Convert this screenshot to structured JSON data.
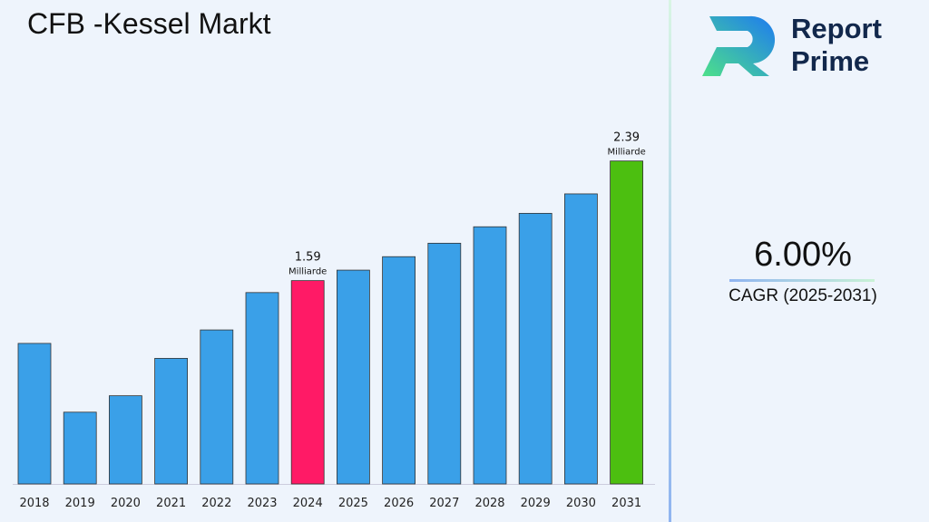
{
  "title": "CFB -Kessel Markt",
  "logo": {
    "line1": "Report",
    "line2": "Prime"
  },
  "cagr": {
    "value": "6.00%",
    "label": "CAGR (2025-2031)"
  },
  "colors": {
    "default": "#3aa0e8",
    "highlight_2024": "#ff1a66",
    "highlight_2031": "#4cbf10"
  },
  "chart_data": {
    "type": "bar",
    "title": "CFB -Kessel Markt",
    "categories": [
      "2018",
      "2019",
      "2020",
      "2021",
      "2022",
      "2023",
      "2024",
      "2025",
      "2026",
      "2027",
      "2028",
      "2029",
      "2030",
      "2031"
    ],
    "values": [
      1.17,
      0.71,
      0.82,
      1.07,
      1.26,
      1.51,
      1.59,
      1.66,
      1.75,
      1.84,
      1.95,
      2.04,
      2.17,
      2.39
    ],
    "ylim": [
      0.23,
      2.6
    ],
    "grid": false,
    "annotations": [
      {
        "category": "2024",
        "value": "1.59",
        "unit": "Milliarde"
      },
      {
        "category": "2031",
        "value": "2.39",
        "unit": "Milliarde"
      }
    ]
  }
}
